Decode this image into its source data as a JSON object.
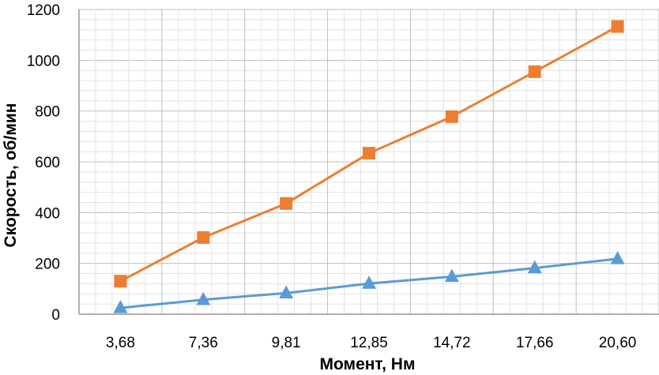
{
  "chart_data": {
    "type": "line",
    "title": "",
    "xlabel": "Момент, Нм",
    "ylabel": "Скорость, об/мин",
    "categories": [
      "3,68",
      "7,36",
      "9,81",
      "12,85",
      "14,72",
      "17,66",
      "20,60"
    ],
    "ylim": [
      0,
      1200
    ],
    "yticks": [
      0,
      200,
      400,
      600,
      800,
      1000,
      1200
    ],
    "grid": true,
    "legend": "none",
    "series": [
      {
        "marker": "square",
        "color": "#ED7D31",
        "values": [
          130,
          302,
          436,
          634,
          778,
          955,
          1133
        ]
      },
      {
        "marker": "triangle",
        "color": "#5B9BD5",
        "values": [
          25,
          57,
          83,
          121,
          148,
          182,
          218
        ]
      }
    ]
  }
}
